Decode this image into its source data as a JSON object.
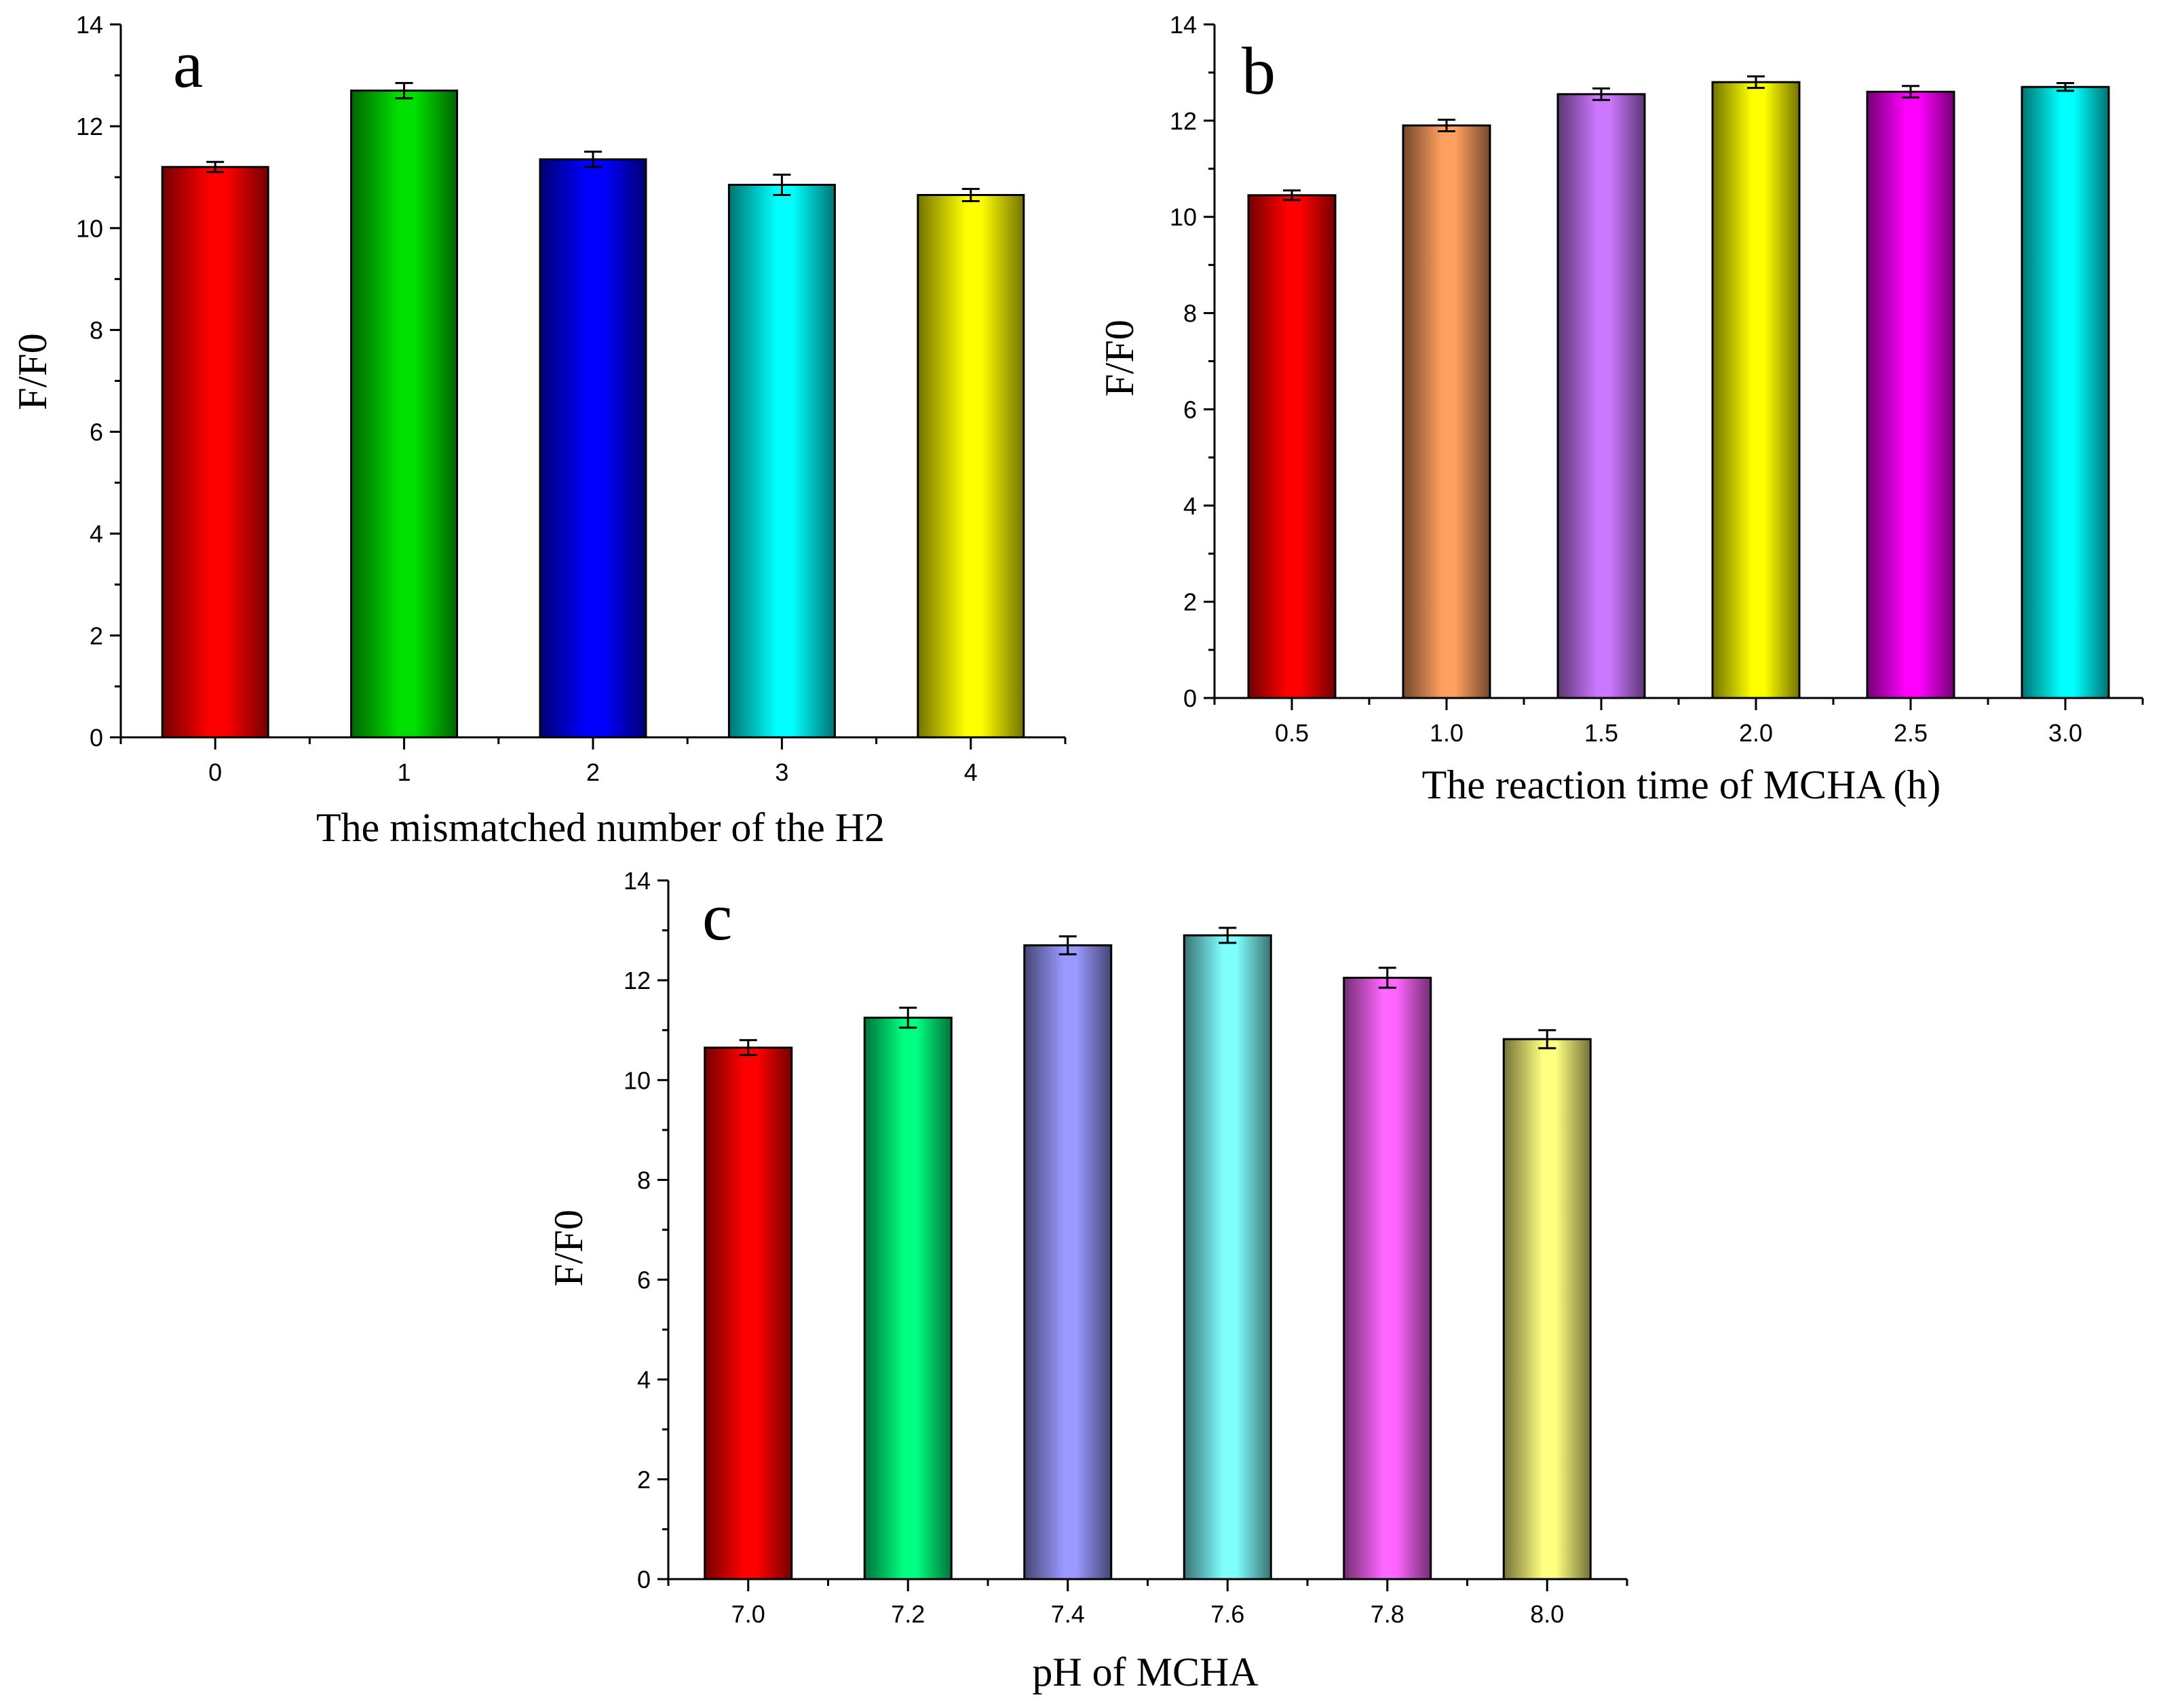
{
  "chart_data": [
    {
      "panel": "a",
      "type": "bar",
      "categories": [
        "0",
        "1",
        "2",
        "3",
        "4"
      ],
      "values": [
        11.2,
        12.7,
        11.35,
        10.85,
        10.65
      ],
      "errors": [
        0.1,
        0.15,
        0.15,
        0.2,
        0.12
      ],
      "colors": [
        "#ff0000",
        "#00e000",
        "#0000ff",
        "#00ffff",
        "#ffff00"
      ],
      "xlabel": "The mismatched number of the H2",
      "ylabel": "F/F0",
      "ylim": [
        0,
        14
      ],
      "yticks": [
        "0",
        "2",
        "4",
        "6",
        "8",
        "10",
        "12",
        "14"
      ]
    },
    {
      "panel": "b",
      "type": "bar",
      "categories": [
        "0.5",
        "1.0",
        "1.5",
        "2.0",
        "2.5",
        "3.0"
      ],
      "values": [
        10.45,
        11.9,
        12.55,
        12.8,
        12.6,
        12.7
      ],
      "errors": [
        0.1,
        0.12,
        0.12,
        0.12,
        0.12,
        0.08
      ],
      "colors": [
        "#ff0000",
        "#ffa060",
        "#cc77ff",
        "#ffff00",
        "#ff00ff",
        "#00ffff"
      ],
      "xlabel": "The reaction time of MCHA (h)",
      "ylabel": "F/F0",
      "ylim": [
        0,
        14
      ],
      "yticks": [
        "0",
        "2",
        "4",
        "6",
        "8",
        "10",
        "12",
        "14"
      ]
    },
    {
      "panel": "c",
      "type": "bar",
      "categories": [
        "7.0",
        "7.2",
        "7.4",
        "7.6",
        "7.8",
        "8.0"
      ],
      "values": [
        10.65,
        11.25,
        12.7,
        12.9,
        12.05,
        10.82
      ],
      "errors": [
        0.15,
        0.2,
        0.18,
        0.15,
        0.2,
        0.18
      ],
      "colors": [
        "#ff0000",
        "#00ff80",
        "#9999ff",
        "#80ffff",
        "#ff66ff",
        "#ffff80"
      ],
      "xlabel": "pH of MCHA",
      "ylabel": "F/F0",
      "ylim": [
        0,
        14
      ],
      "yticks": [
        "0",
        "2",
        "4",
        "6",
        "8",
        "10",
        "12",
        "14"
      ]
    }
  ]
}
